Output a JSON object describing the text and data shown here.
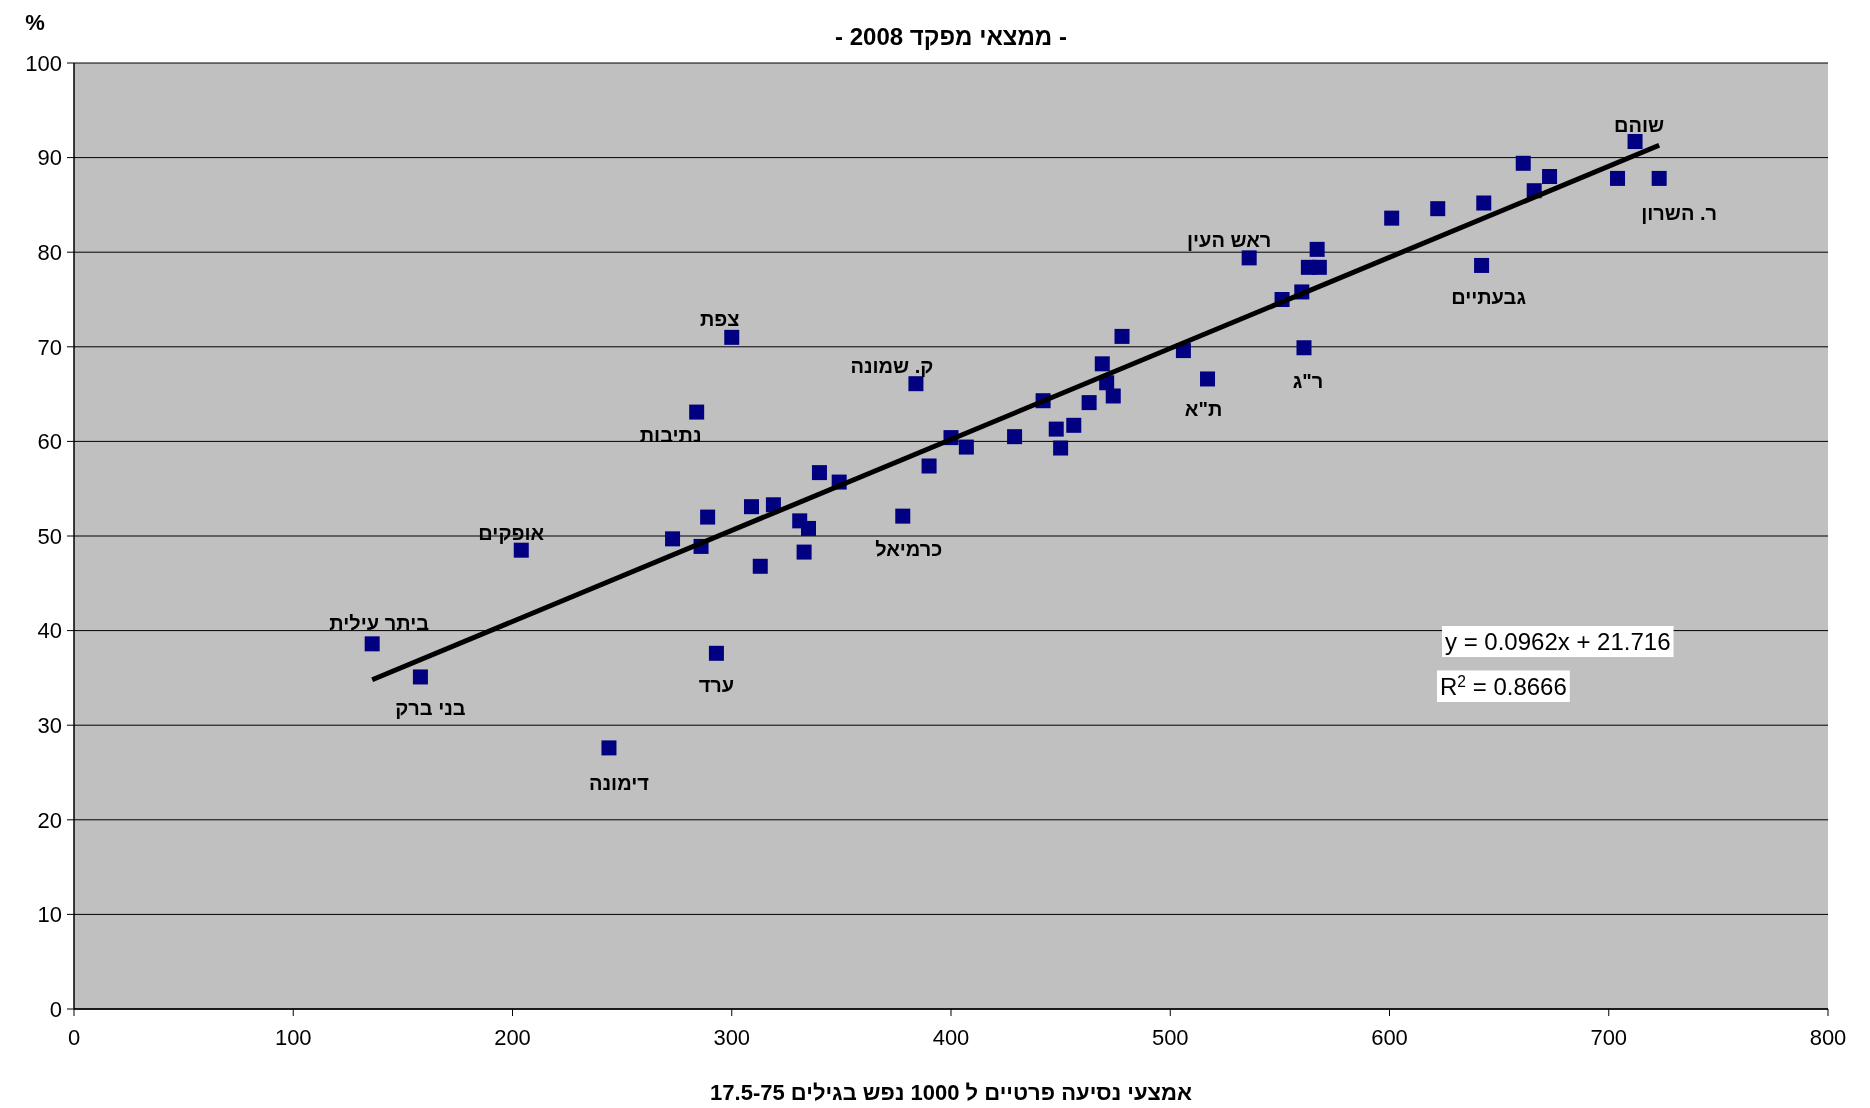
{
  "chart_data": {
    "type": "scatter",
    "title": "- ממצאי מפקד 2008 -",
    "xlabel": "אמצעי נסיעה פרטיים ל 1000 נפש בגילים 17.5-75",
    "ylabel": "%",
    "xlim": [
      0,
      800
    ],
    "xticks": [
      0,
      100,
      200,
      300,
      400,
      500,
      600,
      700,
      800
    ],
    "ylim": [
      0,
      100
    ],
    "yticks": [
      0,
      10,
      20,
      30,
      40,
      50,
      60,
      70,
      80,
      90,
      100
    ],
    "grid": "y",
    "marker": "square",
    "series": [
      {
        "color": "#000080",
        "x": [
          136,
          158,
          204,
          244,
          273,
          284,
          286,
          289,
          293,
          300,
          309,
          313,
          319,
          331,
          333,
          335,
          340,
          349,
          378,
          384,
          390,
          400,
          407,
          429,
          442,
          448,
          450,
          456,
          463,
          469,
          471,
          474,
          478,
          506,
          517,
          536,
          551,
          560,
          561,
          563,
          567,
          568,
          601,
          622,
          642,
          643,
          661,
          666,
          673,
          704,
          712,
          723
        ],
        "values": [
          38.6,
          35.1,
          48.5,
          27.6,
          49.7,
          63.1,
          48.9,
          52.0,
          37.6,
          71.0,
          53.1,
          46.8,
          53.3,
          51.6,
          48.3,
          50.8,
          56.7,
          55.7,
          52.1,
          66.1,
          57.4,
          60.4,
          59.4,
          60.5,
          64.3,
          61.3,
          59.3,
          61.7,
          64.1,
          68.2,
          66.2,
          64.8,
          71.1,
          69.6,
          66.6,
          79.4,
          75.0,
          75.8,
          69.9,
          78.4,
          80.3,
          78.4,
          83.6,
          84.6,
          78.6,
          85.2,
          89.4,
          86.5,
          88.0,
          87.8,
          91.7,
          87.8
        ]
      },
      {
        "type": "line",
        "color": "#000000",
        "marker": "none",
        "line_style": "solid",
        "x": [
          136,
          723
        ],
        "values": [
          34.8,
          91.3
        ]
      }
    ],
    "annotations": [
      {
        "text": "ביתר עילית",
        "x": 136,
        "y": 38.6
      },
      {
        "text": "בני ברק",
        "x": 158,
        "y": 35.1
      },
      {
        "text": "אופקים",
        "x": 204,
        "y": 48.5
      },
      {
        "text": "דימונה",
        "x": 244,
        "y": 27.6
      },
      {
        "text": "נתיבות",
        "x": 284,
        "y": 63.1
      },
      {
        "text": "ערד",
        "x": 293,
        "y": 37.6
      },
      {
        "text": "צפת",
        "x": 300,
        "y": 71.0
      },
      {
        "text": "כרמיאל",
        "x": 378,
        "y": 52.1
      },
      {
        "text": "ק. שמונה",
        "x": 384,
        "y": 66.1
      },
      {
        "text": "ת\"א",
        "x": 517,
        "y": 66.6
      },
      {
        "text": "ראש העין",
        "x": 536,
        "y": 79.4
      },
      {
        "text": "ר\"ג",
        "x": 561,
        "y": 69.9
      },
      {
        "text": "גבעתיים",
        "x": 642,
        "y": 78.6
      },
      {
        "text": "שוהם",
        "x": 712,
        "y": 91.7
      },
      {
        "text": "ר. השרון",
        "x": 723,
        "y": 87.8
      },
      "y = 0.0962x + 21.716",
      "R$^{2}$ = 0.8666"
    ]
  }
}
